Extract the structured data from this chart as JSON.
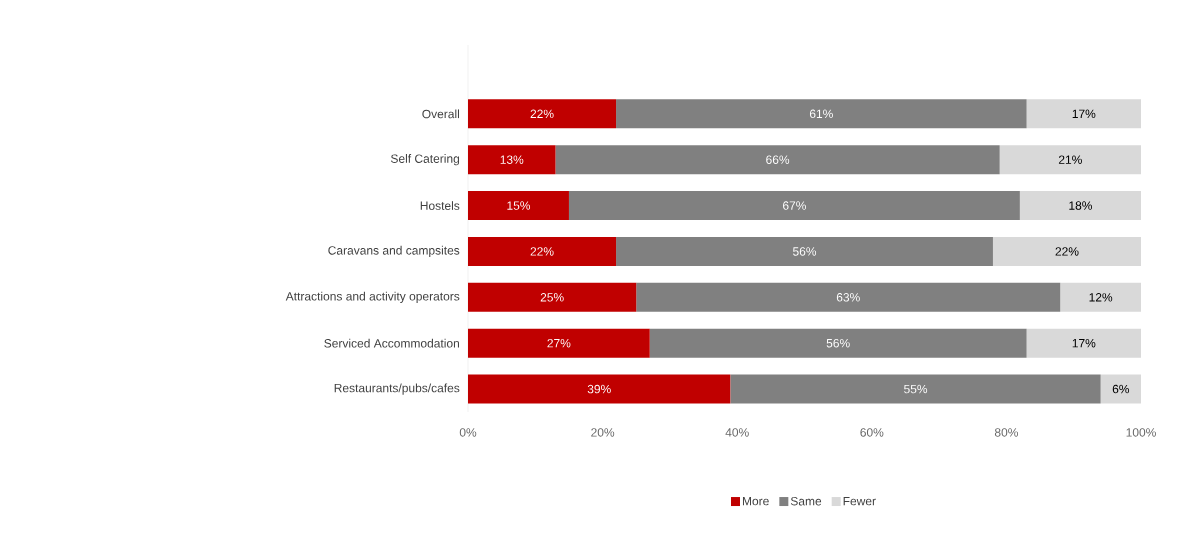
{
  "chart_data": {
    "type": "bar",
    "orientation": "horizontal",
    "stacked": true,
    "categories": [
      "Overall",
      "Self Catering",
      "Hostels",
      "Caravans and campsites",
      "Attractions and activity operators",
      "Serviced Accommodation",
      "Restaurants/pubs/cafes"
    ],
    "series": [
      {
        "name": "More",
        "color": "#c00000",
        "values": [
          22,
          13,
          15,
          22,
          25,
          27,
          39
        ],
        "value_labels": [
          "22%",
          "13%",
          "15%",
          "22%",
          "25%",
          "27%",
          "39%"
        ]
      },
      {
        "name": "Same",
        "color": "#808080",
        "values": [
          61,
          66,
          67,
          56,
          63,
          56,
          55
        ],
        "value_labels": [
          "61%",
          "66%",
          "67%",
          "56%",
          "63%",
          "56%",
          "55%"
        ]
      },
      {
        "name": "Fewer",
        "color": "#d9d9d9",
        "values": [
          17,
          21,
          18,
          22,
          12,
          17,
          6
        ],
        "value_labels": [
          "17%",
          "21%",
          "18%",
          "22%",
          "12%",
          "17%",
          "6%"
        ]
      }
    ],
    "xlim": [
      0,
      100
    ],
    "xticks": [
      {
        "value": 0,
        "label": "0%"
      },
      {
        "value": 20,
        "label": "20%"
      },
      {
        "value": 40,
        "label": "40%"
      },
      {
        "value": 60,
        "label": "60%"
      },
      {
        "value": 80,
        "label": "80%"
      },
      {
        "value": 100,
        "label": "100%"
      }
    ],
    "grid": false,
    "legend": "bottom"
  }
}
